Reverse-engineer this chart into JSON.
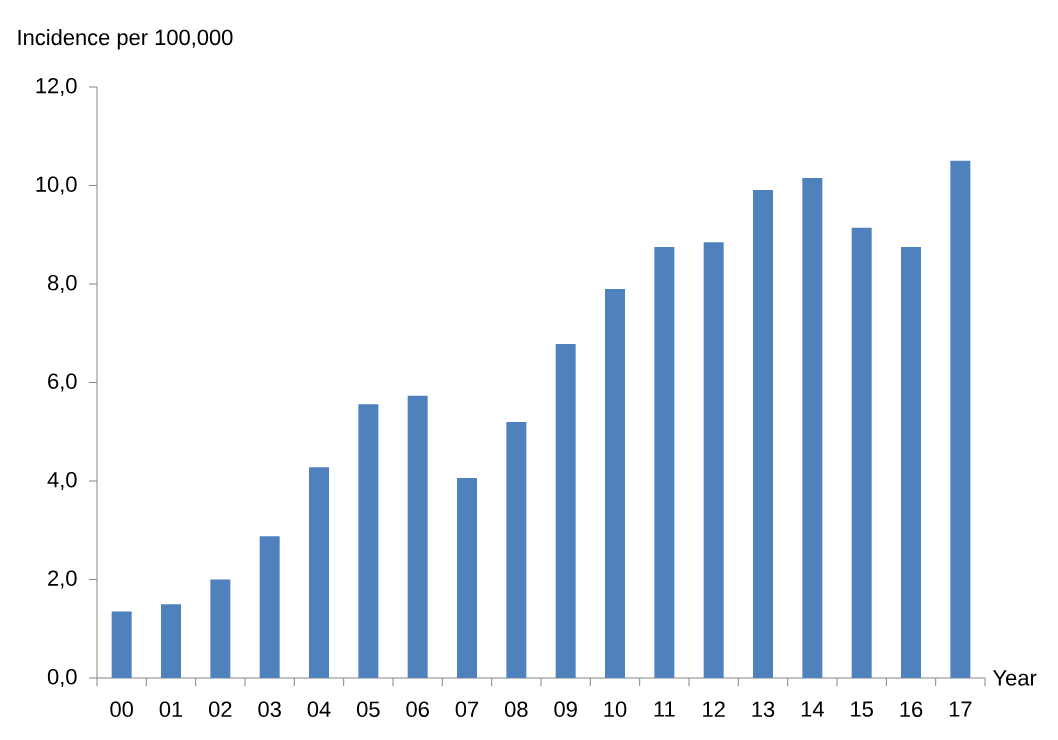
{
  "chart_data": {
    "type": "bar",
    "ylabel": "Incidence per 100,000",
    "xlabel": "Year",
    "categories": [
      "00",
      "01",
      "02",
      "03",
      "04",
      "05",
      "06",
      "07",
      "08",
      "09",
      "10",
      "11",
      "12",
      "13",
      "14",
      "15",
      "16",
      "17"
    ],
    "values": [
      1.35,
      1.5,
      2.0,
      2.88,
      4.28,
      5.56,
      5.73,
      4.06,
      5.2,
      6.78,
      7.9,
      8.75,
      8.85,
      9.91,
      10.15,
      9.14,
      8.75,
      10.5
    ],
    "color": "#4f81bd",
    "ylim": [
      0,
      12
    ],
    "yticks": [
      {
        "value": 0,
        "label": "0,0"
      },
      {
        "value": 2,
        "label": "2,0"
      },
      {
        "value": 4,
        "label": "4,0"
      },
      {
        "value": 6,
        "label": "6,0"
      },
      {
        "value": 8,
        "label": "8,0"
      },
      {
        "value": 10,
        "label": "10,0"
      },
      {
        "value": 12,
        "label": "12,0"
      }
    ]
  }
}
